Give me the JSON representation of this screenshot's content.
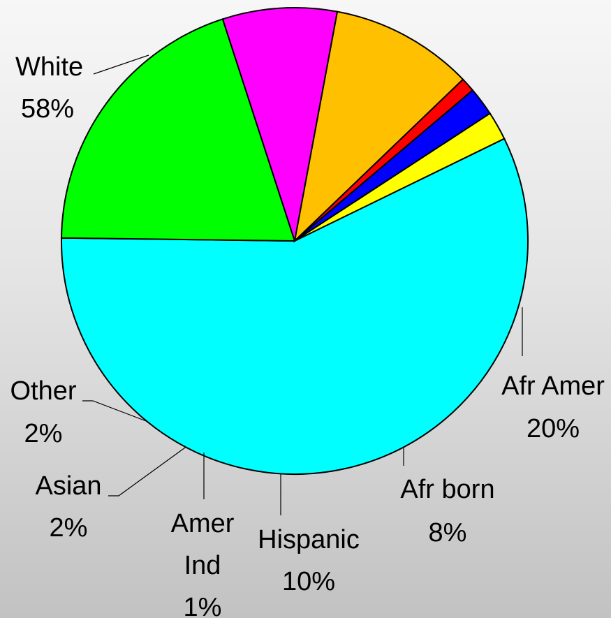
{
  "chart_data": {
    "type": "pie",
    "title": "(",
    "start_angle_deg": 64,
    "direction": "clockwise",
    "slices": [
      {
        "label": "White",
        "value_label": "58%",
        "value": 58,
        "color": "#00ffff"
      },
      {
        "label": "Afr Amer",
        "value_label": "20%",
        "value": 20,
        "color": "#00ff00"
      },
      {
        "label": "Afr born",
        "value_label": "8%",
        "value": 8,
        "color": "#ff00ff"
      },
      {
        "label": "Hispanic",
        "value_label": "10%",
        "value": 10,
        "color": "#ffc000"
      },
      {
        "label": "Amer Ind",
        "value_label": "1%",
        "value": 1,
        "color": "#ff0000"
      },
      {
        "label": "Asian",
        "value_label": "2%",
        "value": 2,
        "color": "#0000ff"
      },
      {
        "label": "Other",
        "value_label": "2%",
        "value": 2,
        "color": "#ffff00"
      }
    ],
    "legend": "none"
  }
}
